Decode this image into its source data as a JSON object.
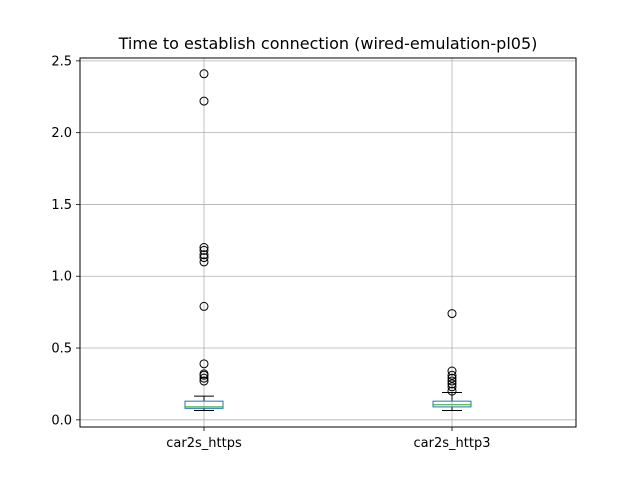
{
  "chart_data": {
    "type": "box",
    "title": "Time to establish connection (wired-emulation-pl05)",
    "xlabel": "",
    "ylabel": "",
    "ylim": [
      -0.05,
      2.52
    ],
    "yticks": [
      0.0,
      0.5,
      1.0,
      1.5,
      2.0,
      2.5
    ],
    "ytick_labels": [
      "0.0",
      "0.5",
      "1.0",
      "1.5",
      "2.0",
      "2.5"
    ],
    "grid": true,
    "categories": [
      "car2s_https",
      "car2s_http3"
    ],
    "series": [
      {
        "whisker_low": 0.065,
        "q1": 0.08,
        "median": 0.09,
        "q3": 0.13,
        "whisker_high": 0.165,
        "outliers": [
          0.27,
          0.29,
          0.31,
          0.32,
          0.39,
          0.79,
          1.1,
          1.13,
          1.15,
          1.18,
          1.2,
          2.22,
          2.41
        ]
      },
      {
        "whisker_low": 0.065,
        "q1": 0.09,
        "median": 0.105,
        "q3": 0.13,
        "whisker_high": 0.19,
        "outliers": [
          0.2,
          0.23,
          0.25,
          0.27,
          0.29,
          0.31,
          0.34,
          0.74
        ]
      }
    ],
    "colors": {
      "box": "#1f77b4",
      "median": "#2ca02c",
      "whisker": "#000000",
      "outlier": "#000000",
      "grid": "#b0b0b0"
    }
  }
}
